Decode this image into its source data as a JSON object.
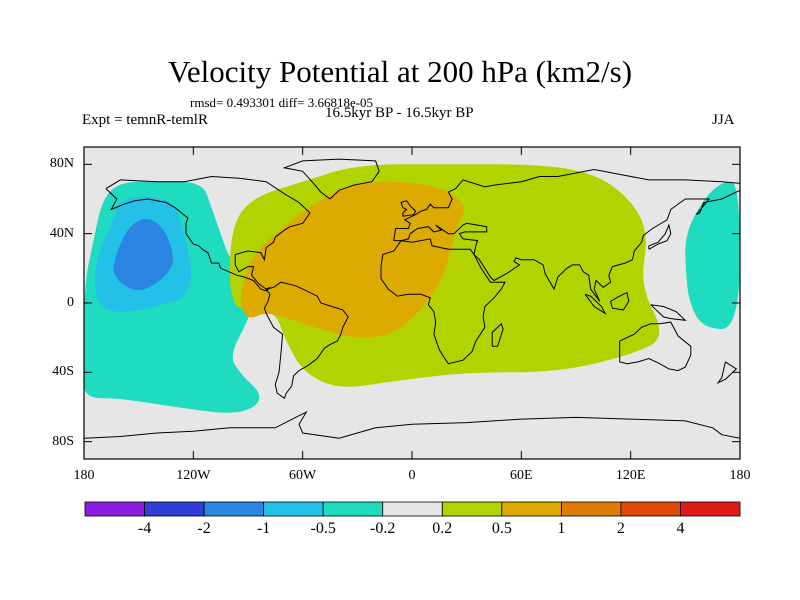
{
  "title": "Velocity Potential at 200 hPa (km2/s)",
  "stats": "rmsd= 0.493301 diff= 3.66818e-05",
  "experiment": "Expt = temnR-temlR",
  "period": "16.5kyr BP - 16.5kyr BP",
  "season": "JJA",
  "map": {
    "projection": "cylindrical equidistant",
    "background_color": "#e6e6e6",
    "lon_range": [
      -180,
      180
    ],
    "lat_range": [
      -90,
      90
    ]
  },
  "axes": {
    "y_ticks": [
      {
        "lat": 80,
        "label": "80N"
      },
      {
        "lat": 40,
        "label": "40N"
      },
      {
        "lat": 0,
        "label": "0"
      },
      {
        "lat": -40,
        "label": "40S"
      },
      {
        "lat": -80,
        "label": "80S"
      }
    ],
    "x_ticks": [
      {
        "lon": -180,
        "label": "180"
      },
      {
        "lon": -120,
        "label": "120W"
      },
      {
        "lon": -60,
        "label": "60W"
      },
      {
        "lon": 0,
        "label": "0"
      },
      {
        "lon": 60,
        "label": "60E"
      },
      {
        "lon": 120,
        "label": "120E"
      },
      {
        "lon": 180,
        "label": "180"
      }
    ]
  },
  "colorbar": {
    "colors": [
      "#8a1ee0",
      "#2e3fd9",
      "#2a86e0",
      "#23c0e8",
      "#1fdcc0",
      "#e6e6e6",
      "#b3d300",
      "#dcaa00",
      "#df7c06",
      "#e04a06",
      "#e11a1a"
    ],
    "labels": [
      "-4",
      "-2",
      "-1",
      "-0.5",
      "-0.2",
      "0.2",
      "0.5",
      "1",
      "2",
      "4"
    ]
  },
  "chart_data": {
    "type": "heatmap",
    "variable": "Velocity Potential at 200 hPa",
    "units": "km2/s",
    "levels": [
      -4,
      -2,
      -1,
      -0.5,
      -0.2,
      0.2,
      0.5,
      1,
      2,
      4
    ],
    "regions": [
      {
        "name": "pacific-neg",
        "value": -0.35,
        "lonlat": [
          [
            -180,
            -40
          ],
          [
            -180,
            10
          ],
          [
            -175,
            35
          ],
          [
            -170,
            60
          ],
          [
            -160,
            70
          ],
          [
            -140,
            70
          ],
          [
            -115,
            70
          ],
          [
            -110,
            55
          ],
          [
            -105,
            40
          ],
          [
            -100,
            25
          ],
          [
            -85,
            5
          ],
          [
            -90,
            -10
          ],
          [
            -100,
            -30
          ],
          [
            -95,
            -40
          ],
          [
            -80,
            -55
          ],
          [
            -95,
            -65
          ],
          [
            -130,
            -60
          ],
          [
            -160,
            -55
          ],
          [
            -180,
            -55
          ]
        ]
      },
      {
        "name": "pacific-neg-core",
        "value": -0.6,
        "lonlat": [
          [
            -175,
            10
          ],
          [
            -172,
            30
          ],
          [
            -165,
            45
          ],
          [
            -160,
            60
          ],
          [
            -145,
            62
          ],
          [
            -130,
            58
          ],
          [
            -125,
            40
          ],
          [
            -120,
            15
          ],
          [
            -125,
            2
          ],
          [
            -135,
            0
          ],
          [
            -150,
            -5
          ],
          [
            -170,
            -5
          ]
        ]
      },
      {
        "name": "pacific-neg-peak",
        "value": -1.2,
        "lonlat": [
          [
            -165,
            15
          ],
          [
            -162,
            30
          ],
          [
            -155,
            45
          ],
          [
            -145,
            50
          ],
          [
            -135,
            42
          ],
          [
            -130,
            25
          ],
          [
            -135,
            15
          ],
          [
            -150,
            5
          ]
        ]
      },
      {
        "name": "westpac-neg",
        "value": -0.35,
        "lonlat": [
          [
            180,
            -15
          ],
          [
            160,
            -15
          ],
          [
            152,
            0
          ],
          [
            150,
            20
          ],
          [
            150,
            40
          ],
          [
            160,
            60
          ],
          [
            170,
            70
          ],
          [
            180,
            70
          ]
        ]
      },
      {
        "name": "africa-eurasia-pos",
        "value": 0.35,
        "lonlat": [
          [
            -100,
            0
          ],
          [
            -100,
            40
          ],
          [
            -90,
            60
          ],
          [
            -60,
            70
          ],
          [
            -30,
            80
          ],
          [
            20,
            80
          ],
          [
            70,
            80
          ],
          [
            100,
            75
          ],
          [
            120,
            60
          ],
          [
            130,
            40
          ],
          [
            125,
            10
          ],
          [
            140,
            -20
          ],
          [
            120,
            -30
          ],
          [
            80,
            -40
          ],
          [
            30,
            -40
          ],
          [
            -10,
            -45
          ],
          [
            -40,
            -50
          ],
          [
            -60,
            -40
          ],
          [
            -70,
            -20
          ],
          [
            -75,
            -5
          ],
          [
            -90,
            -5
          ]
        ]
      },
      {
        "name": "atlantic-africa-pos-core",
        "value": 0.7,
        "lonlat": [
          [
            -95,
            0
          ],
          [
            -90,
            25
          ],
          [
            -70,
            45
          ],
          [
            -50,
            60
          ],
          [
            -30,
            70
          ],
          [
            0,
            70
          ],
          [
            20,
            65
          ],
          [
            30,
            55
          ],
          [
            25,
            45
          ],
          [
            20,
            25
          ],
          [
            15,
            10
          ],
          [
            0,
            -10
          ],
          [
            -15,
            -20
          ],
          [
            -35,
            -20
          ],
          [
            -50,
            -15
          ],
          [
            -65,
            -10
          ],
          [
            -80,
            -5
          ],
          [
            -90,
            -10
          ]
        ]
      }
    ]
  }
}
